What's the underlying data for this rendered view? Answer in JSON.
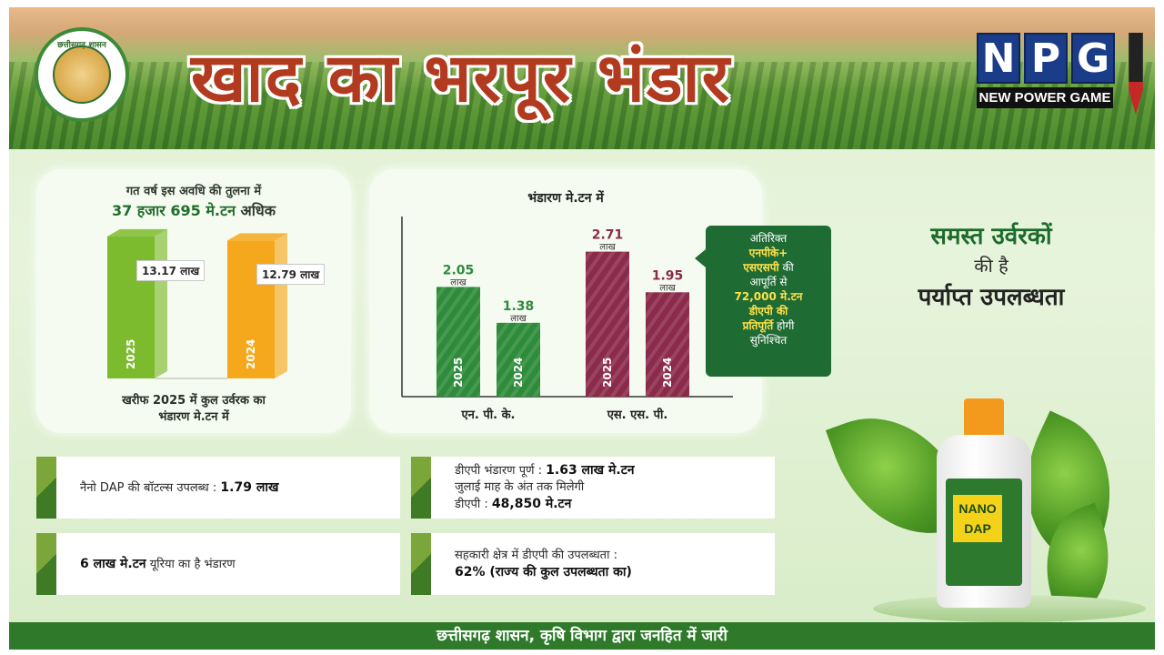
{
  "header": {
    "title": "खाद का भरपूर भंडार",
    "emblem_text": "छत्तीसगढ़ शासन",
    "npg_letters": [
      "N",
      "P",
      "G"
    ],
    "npg_tagline": "NEW POWER GAME"
  },
  "left_panel": {
    "compare_line1": "गत वर्ष इस अवधि की तुलना में",
    "compare_value": "37 हजार 695 मे.टन",
    "compare_suffix": "अधिक",
    "caption_line1": "खरीफ 2025 में कुल उर्वरक का",
    "caption_line2": "भंडारण मे.टन में"
  },
  "mid_panel": {
    "title": "भंडारण मे.टन में",
    "unit_label": "लाख"
  },
  "callout": {
    "l1": "अतिरिक्त",
    "l2": "एनपीके+",
    "l3a": "एसएसपी",
    "l3b": "की",
    "l4": "आपूर्ति से",
    "l5": "72,000 मे.टन",
    "l6": "डीएपी की",
    "l7a": "प्रतिपूर्ति",
    "l7b": "होगी",
    "l8": "सुनिश्चित"
  },
  "side_heading": {
    "line1": "समस्त उर्वरकों",
    "line2": "की है",
    "line3": "पर्याप्त उपलब्धता"
  },
  "info_boxes": {
    "b1_text": "नैनो DAP की बॉटल्स उपलब्ध :",
    "b1_value": "1.79 लाख",
    "b2_l1_text": "डीएपी भंडारण पूर्ण :",
    "b2_l1_value": "1.63 लाख मे.टन",
    "b2_l2": "जुलाई माह के अंत तक मिलेगी",
    "b2_l3_text": "डीएपी :",
    "b2_l3_value": "48,850 मे.टन",
    "b3_value": "6 लाख मे.टन",
    "b3_text": "यूरिया का है भंडारण",
    "b4_l1": "सहकारी क्षेत्र में डीएपी की उपलब्धता :",
    "b4_l2": "62% (राज्य की कुल उपलब्धता का)"
  },
  "product": {
    "label_line1": "NANO",
    "label_line2": "DAP"
  },
  "footer": {
    "text": "छत्तीसगढ़ शासन, कृषि विभाग द्वारा जनहित में जारी"
  },
  "chart_data": [
    {
      "type": "bar",
      "categories": [
        "2025",
        "2024"
      ],
      "values": [
        13.17,
        12.79
      ],
      "value_labels": [
        "13.17 लाख",
        "12.79 लाख"
      ],
      "colors": [
        "#7cbb2e",
        "#f5a81c"
      ],
      "title": "गत वर्ष इस अवधि की तुलना में 37 हजार 695 मे.टन अधिक",
      "xlabel": "खरीफ 2025 में कुल उर्वरक का भंडारण मे.टन में",
      "ylabel": "",
      "ylim": [
        0,
        14
      ]
    },
    {
      "type": "bar",
      "title": "भंडारण मे.टन में",
      "categories": [
        "एन. पी. के.",
        "एस. एस. पी."
      ],
      "series": [
        {
          "category": "एन. पी. के.",
          "year": "2025",
          "value": 2.05,
          "label": "2.05",
          "color": "#2e8b3a"
        },
        {
          "category": "एन. पी. के.",
          "year": "2024",
          "value": 1.38,
          "label": "1.38",
          "color": "#2e8b3a"
        },
        {
          "category": "एस. एस. पी.",
          "year": "2025",
          "value": 2.71,
          "label": "2.71",
          "color": "#8b2a4a"
        },
        {
          "category": "एस. एस. पी.",
          "year": "2024",
          "value": 1.95,
          "label": "1.95",
          "color": "#8b2a4a"
        }
      ],
      "xlabel": "",
      "ylabel": "",
      "ylim": [
        0,
        3.4
      ],
      "grid": false
    }
  ]
}
